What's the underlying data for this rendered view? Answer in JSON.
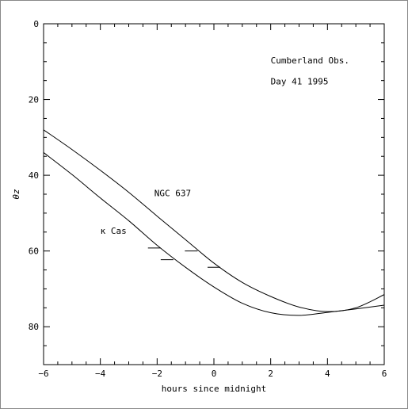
{
  "chart_data": {
    "type": "line",
    "title": "",
    "xlabel": "hours since midnight",
    "ylabel": "θz",
    "xlim": [
      -6,
      6
    ],
    "ylim": [
      0,
      90
    ],
    "y_inverted": true,
    "xticks": [
      -6,
      -4,
      -2,
      0,
      2,
      4,
      6
    ],
    "xtick_labels": [
      "−6",
      "−4",
      "−2",
      "0",
      "2",
      "4",
      "6"
    ],
    "yticks": [
      0,
      20,
      40,
      60,
      80
    ],
    "ytick_labels": [
      "0",
      "20",
      "40",
      "60",
      "80"
    ],
    "grid": false,
    "annotations": [
      {
        "text": "Cumberland Obs.",
        "x": 2.0,
        "y": 10.5
      },
      {
        "text": "Day 41 1995",
        "x": 2.0,
        "y": 16.0
      },
      {
        "text": "NGC 637",
        "x": -2.1,
        "y": 45.5
      },
      {
        "text": "κ Cas",
        "x": -4.0,
        "y": 55.5
      }
    ],
    "series": [
      {
        "name": "NGC 637",
        "x": [
          -6,
          -5,
          -4,
          -3,
          -2,
          -1,
          0,
          1,
          2,
          3,
          4,
          5,
          6
        ],
        "y": [
          28.0,
          33.2,
          38.7,
          44.5,
          50.8,
          57.0,
          63.2,
          68.3,
          72.0,
          74.8,
          76.0,
          75.0,
          71.5
        ]
      },
      {
        "name": "κ Cas",
        "x": [
          -6,
          -5,
          -4,
          -3,
          -2,
          -1,
          0,
          1,
          2,
          3,
          4,
          5,
          6
        ],
        "y": [
          34.0,
          39.8,
          46.0,
          52.0,
          58.5,
          64.3,
          69.5,
          73.8,
          76.3,
          77.0,
          76.2,
          75.3,
          74.3
        ]
      }
    ],
    "markers": [
      {
        "x": -2.1,
        "y": 59.2
      },
      {
        "x": -1.65,
        "y": 62.3
      },
      {
        "x": -0.8,
        "y": 60.0
      },
      {
        "x": 0.0,
        "y": 64.3
      }
    ]
  }
}
